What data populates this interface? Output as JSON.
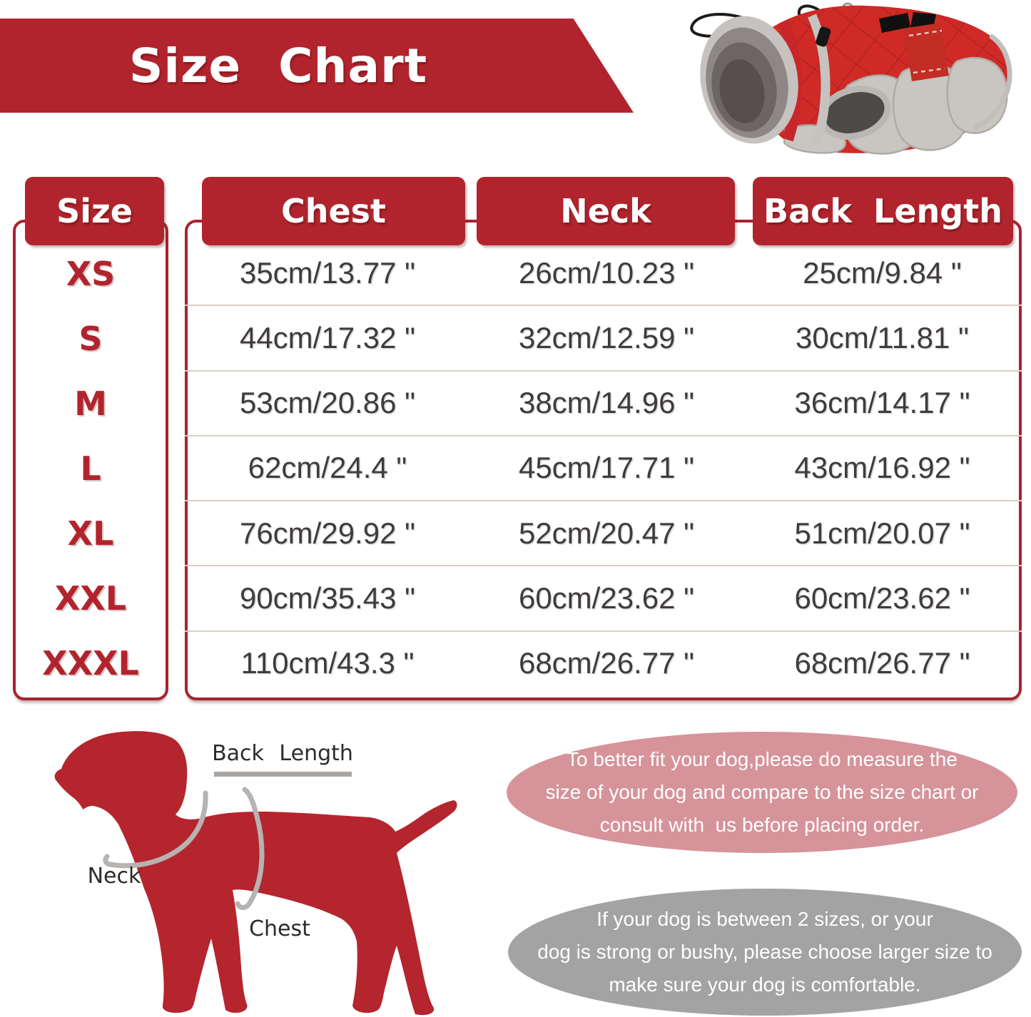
{
  "page_title": "Size Chart",
  "colors": {
    "brand_red": "#b2242d",
    "coat_red": "#cf2a26",
    "note_pink": "#d6939a",
    "note_gray": "#a3a3a3",
    "row_separator": "#dcccc7",
    "measurement_text": "#3f3b3a"
  },
  "chart_data": {
    "type": "table",
    "title": "Size Chart",
    "columns": [
      "Size",
      "Chest",
      "Neck",
      "Back Length"
    ],
    "rows": [
      [
        "XS",
        "35cm/13.77 \"",
        "26cm/10.23 \"",
        "25cm/9.84 \""
      ],
      [
        "S",
        "44cm/17.32 \"",
        "32cm/12.59 \"",
        "30cm/11.81 \""
      ],
      [
        "M",
        "53cm/20.86 \"",
        "38cm/14.96 \"",
        "36cm/14.17 \""
      ],
      [
        "L",
        "62cm/24.4 \"",
        "45cm/17.71 \"",
        "43cm/16.92 \""
      ],
      [
        "XL",
        "76cm/29.92 \"",
        "52cm/20.47 \"",
        "51cm/20.07 \""
      ],
      [
        "XXL",
        "90cm/35.43 \"",
        "60cm/23.62 \"",
        "60cm/23.62 \""
      ],
      [
        "XXXL",
        "110cm/43.3 \"",
        "68cm/26.77 \"",
        "68cm/26.77 \""
      ]
    ]
  },
  "diagram_labels": {
    "back_length": "Back Length",
    "neck": "Neck",
    "chest": "Chest"
  },
  "notes": {
    "fit_note_lines": [
      "To better fit your dog,please do measure the",
      "size of your dog and compare to the size chart or",
      "consult with  us before placing order."
    ],
    "sizing_note_lines": [
      "If your dog is between 2 sizes, or your",
      "dog is strong or bushy, please choose larger size to",
      "make sure your dog is comfortable."
    ]
  }
}
